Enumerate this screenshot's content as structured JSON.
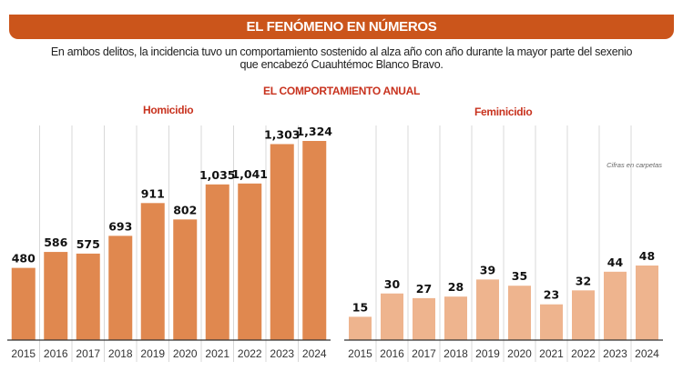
{
  "header": {
    "title": "EL FENÓMENO EN NÚMEROS",
    "subtitle_line1": "En ambos delitos, la incidencia tuvo un comportamiento sostenido al alza año con año durante la mayor parte del sexenio",
    "subtitle_line2": "que encabezó Cuauhtémoc Blanco Bravo.",
    "section_title": "EL COMPORTAMIENTO ANUAL"
  },
  "colors": {
    "banner": "#cb551b",
    "section_title": "#c8321e",
    "homicidio_bars": "#e0884f",
    "feminicidio_bars": "#eeb48e"
  },
  "chart_data": [
    {
      "type": "bar",
      "title": "Homicidio",
      "categories": [
        "2015",
        "2016",
        "2017",
        "2018",
        "2019",
        "2020",
        "2021",
        "2022",
        "2023",
        "2024"
      ],
      "values": [
        480,
        586,
        575,
        693,
        911,
        802,
        1035,
        1041,
        1303,
        1324
      ],
      "data_labels": [
        "480",
        "586",
        "575",
        "693",
        "911",
        "802",
        "1,035",
        "1,041",
        "1,303",
        "1,324"
      ],
      "ylim": [
        0,
        1324
      ],
      "grid": "vertical separators"
    },
    {
      "type": "bar",
      "title": "Feminicidio",
      "note": "Cifras en carpetas",
      "categories": [
        "2015",
        "2016",
        "2017",
        "2018",
        "2019",
        "2020",
        "2021",
        "2022",
        "2023",
        "2024"
      ],
      "values": [
        15,
        30,
        27,
        28,
        39,
        35,
        23,
        32,
        44,
        48
      ],
      "data_labels": [
        "15",
        "30",
        "27",
        "28",
        "39",
        "35",
        "23",
        "32",
        "44",
        "48"
      ],
      "ylim": [
        0,
        48
      ],
      "grid": "vertical separators"
    }
  ]
}
